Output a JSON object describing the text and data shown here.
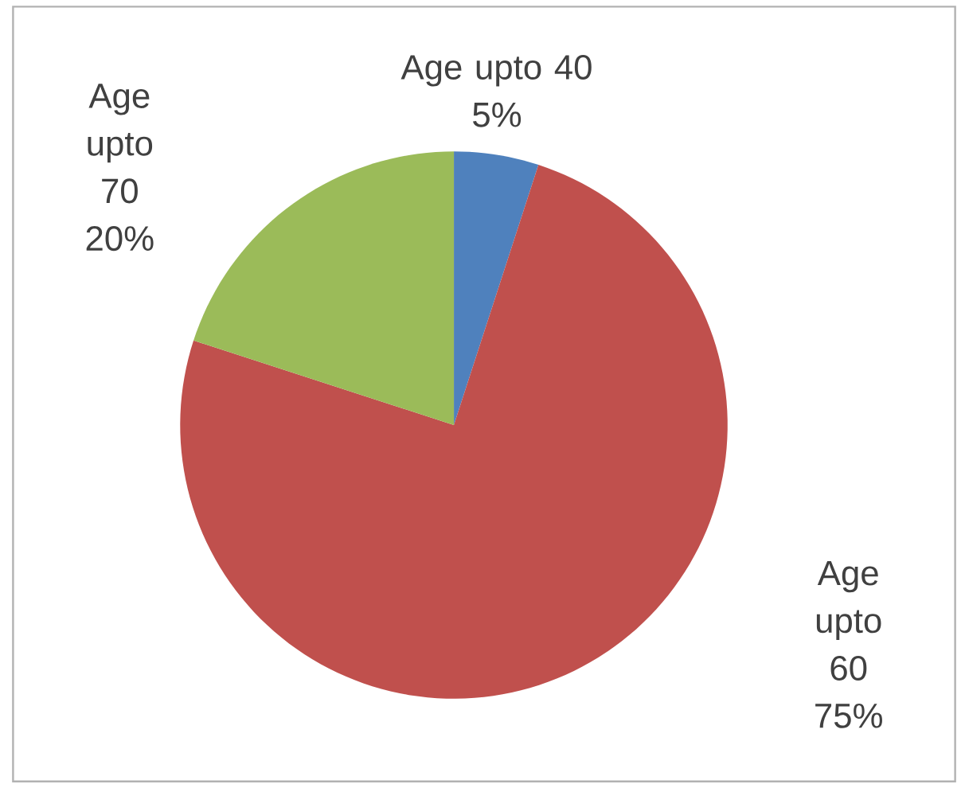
{
  "chart_data": {
    "type": "pie",
    "categories": [
      "Age upto 40",
      "Age upto 60",
      "Age upto 70"
    ],
    "values": [
      5,
      75,
      20
    ],
    "value_labels": [
      "5%",
      "75%",
      "20%"
    ],
    "colors": [
      "#4f81bd",
      "#c0504d",
      "#9bbb59"
    ]
  }
}
